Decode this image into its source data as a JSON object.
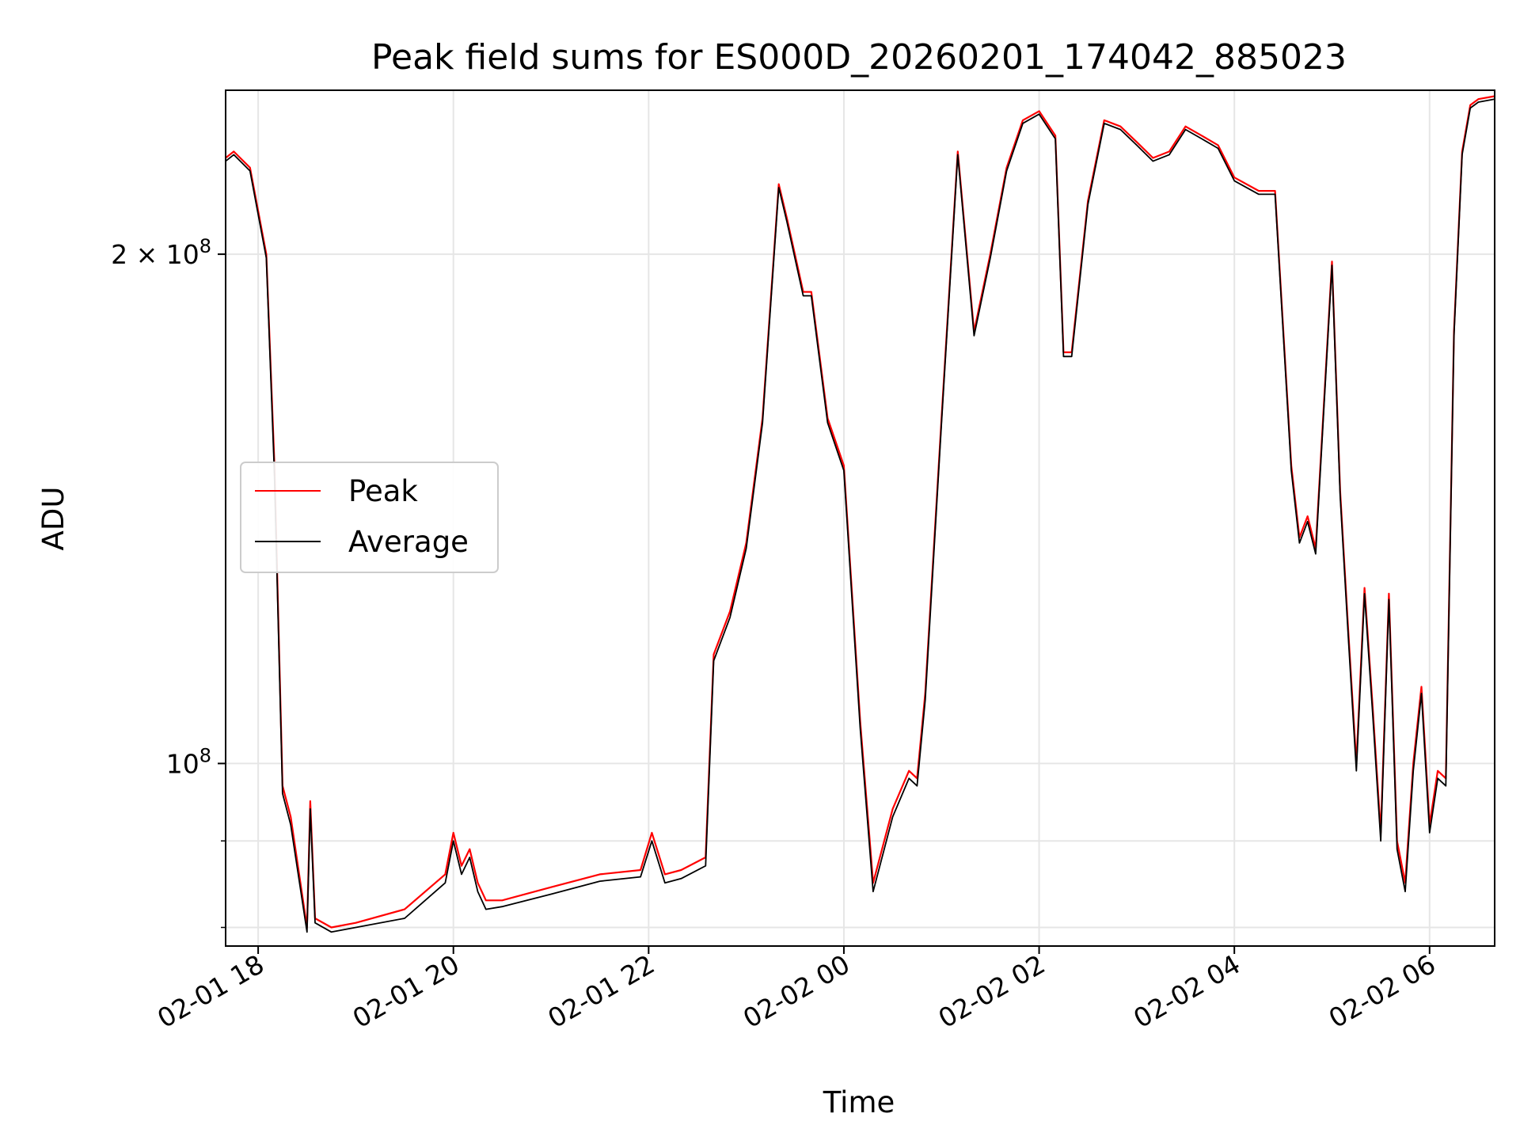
{
  "chart_data": {
    "type": "line",
    "title": "Peak field sums for ES000D_20260201_174042_885023",
    "xlabel": "Time",
    "ylabel": "ADU",
    "yscale": "log",
    "xlim": [
      "2026-02-01 17:40",
      "2026-02-02 06:40"
    ],
    "ylim": [
      78000000,
      250000000
    ],
    "x_ticks": [
      {
        "t": "2026-02-01 18:00",
        "label": "02-01 18"
      },
      {
        "t": "2026-02-01 20:00",
        "label": "02-01 20"
      },
      {
        "t": "2026-02-01 22:00",
        "label": "02-01 22"
      },
      {
        "t": "2026-02-02 00:00",
        "label": "02-02 00"
      },
      {
        "t": "2026-02-02 02:00",
        "label": "02-02 02"
      },
      {
        "t": "2026-02-02 04:00",
        "label": "02-02 04"
      },
      {
        "t": "2026-02-02 06:00",
        "label": "02-02 06"
      }
    ],
    "y_major_ticks": [
      {
        "value": 100000000,
        "base": "10",
        "exp": "8",
        "prefix": ""
      },
      {
        "value": 200000000,
        "base": "10",
        "exp": "8",
        "prefix": "2 × "
      }
    ],
    "y_minor_ticks": [
      80000000,
      90000000
    ],
    "grid": true,
    "legend": {
      "position": "center-left"
    },
    "series": [
      {
        "name": "Peak",
        "color": "#ff0000",
        "x": [
          "2026-02-01 17:40",
          "2026-02-01 17:45",
          "2026-02-01 17:55",
          "2026-02-01 18:05",
          "2026-02-01 18:10",
          "2026-02-01 18:15",
          "2026-02-01 18:20",
          "2026-02-01 18:30",
          "2026-02-01 18:32",
          "2026-02-01 18:35",
          "2026-02-01 18:45",
          "2026-02-01 19:00",
          "2026-02-01 19:30",
          "2026-02-01 19:55",
          "2026-02-01 20:00",
          "2026-02-01 20:05",
          "2026-02-01 20:10",
          "2026-02-01 20:15",
          "2026-02-01 20:20",
          "2026-02-01 20:30",
          "2026-02-01 21:00",
          "2026-02-01 21:30",
          "2026-02-01 21:55",
          "2026-02-01 22:02",
          "2026-02-01 22:10",
          "2026-02-01 22:20",
          "2026-02-01 22:35",
          "2026-02-01 22:40",
          "2026-02-01 22:50",
          "2026-02-01 23:00",
          "2026-02-01 23:10",
          "2026-02-01 23:20",
          "2026-02-01 23:25",
          "2026-02-01 23:35",
          "2026-02-01 23:40",
          "2026-02-01 23:50",
          "2026-02-02 00:00",
          "2026-02-02 00:10",
          "2026-02-02 00:18",
          "2026-02-02 00:30",
          "2026-02-02 00:40",
          "2026-02-02 00:45",
          "2026-02-02 00:50",
          "2026-02-02 01:00",
          "2026-02-02 01:10",
          "2026-02-02 01:20",
          "2026-02-02 01:30",
          "2026-02-02 01:40",
          "2026-02-02 01:50",
          "2026-02-02 02:00",
          "2026-02-02 02:10",
          "2026-02-02 02:15",
          "2026-02-02 02:20",
          "2026-02-02 02:30",
          "2026-02-02 02:40",
          "2026-02-02 02:50",
          "2026-02-02 03:00",
          "2026-02-02 03:10",
          "2026-02-02 03:20",
          "2026-02-02 03:30",
          "2026-02-02 03:40",
          "2026-02-02 03:50",
          "2026-02-02 04:00",
          "2026-02-02 04:15",
          "2026-02-02 04:25",
          "2026-02-02 04:35",
          "2026-02-02 04:40",
          "2026-02-02 04:45",
          "2026-02-02 04:50",
          "2026-02-02 05:00",
          "2026-02-02 05:05",
          "2026-02-02 05:10",
          "2026-02-02 05:15",
          "2026-02-02 05:20",
          "2026-02-02 05:25",
          "2026-02-02 05:30",
          "2026-02-02 05:35",
          "2026-02-02 05:40",
          "2026-02-02 05:45",
          "2026-02-02 05:50",
          "2026-02-02 05:55",
          "2026-02-02 06:00",
          "2026-02-02 06:05",
          "2026-02-02 06:10",
          "2026-02-02 06:15",
          "2026-02-02 06:20",
          "2026-02-02 06:25",
          "2026-02-02 06:30",
          "2026-02-02 06:40"
        ],
        "y": [
          228000000,
          230000000,
          225000000,
          200000000,
          150000000,
          97000000,
          93000000,
          80000000,
          95000000,
          81000000,
          80000000,
          80500000,
          82000000,
          86000000,
          91000000,
          87000000,
          89000000,
          85000000,
          83000000,
          83000000,
          84500000,
          86000000,
          86500000,
          91000000,
          86000000,
          86500000,
          88000000,
          116000000,
          123000000,
          135000000,
          160000000,
          220000000,
          210000000,
          190000000,
          190000000,
          160000000,
          150000000,
          106000000,
          85000000,
          94000000,
          99000000,
          98000000,
          110000000,
          160000000,
          230000000,
          180000000,
          200000000,
          225000000,
          240000000,
          243000000,
          235000000,
          175000000,
          175000000,
          215000000,
          240000000,
          238000000,
          233000000,
          228000000,
          230000000,
          238000000,
          235000000,
          232000000,
          222000000,
          218000000,
          218000000,
          150000000,
          136000000,
          140000000,
          134000000,
          198000000,
          145000000,
          120000000,
          100000000,
          127000000,
          108000000,
          91000000,
          126000000,
          90000000,
          85000000,
          100000000,
          111000000,
          92000000,
          99000000,
          98000000,
          180000000,
          230000000,
          245000000,
          247000000,
          248000000
        ]
      },
      {
        "name": "Average",
        "color": "#000000",
        "x": [
          "2026-02-01 17:40",
          "2026-02-01 17:45",
          "2026-02-01 17:55",
          "2026-02-01 18:05",
          "2026-02-01 18:10",
          "2026-02-01 18:15",
          "2026-02-01 18:20",
          "2026-02-01 18:30",
          "2026-02-01 18:32",
          "2026-02-01 18:35",
          "2026-02-01 18:45",
          "2026-02-01 19:00",
          "2026-02-01 19:30",
          "2026-02-01 19:55",
          "2026-02-01 20:00",
          "2026-02-01 20:05",
          "2026-02-01 20:10",
          "2026-02-01 20:15",
          "2026-02-01 20:20",
          "2026-02-01 20:30",
          "2026-02-01 21:00",
          "2026-02-01 21:30",
          "2026-02-01 21:55",
          "2026-02-01 22:02",
          "2026-02-01 22:10",
          "2026-02-01 22:20",
          "2026-02-01 22:35",
          "2026-02-01 22:40",
          "2026-02-01 22:50",
          "2026-02-01 23:00",
          "2026-02-01 23:10",
          "2026-02-01 23:20",
          "2026-02-01 23:25",
          "2026-02-01 23:35",
          "2026-02-01 23:40",
          "2026-02-01 23:50",
          "2026-02-02 00:00",
          "2026-02-02 00:10",
          "2026-02-02 00:18",
          "2026-02-02 00:30",
          "2026-02-02 00:40",
          "2026-02-02 00:45",
          "2026-02-02 00:50",
          "2026-02-02 01:00",
          "2026-02-02 01:10",
          "2026-02-02 01:20",
          "2026-02-02 01:30",
          "2026-02-02 01:40",
          "2026-02-02 01:50",
          "2026-02-02 02:00",
          "2026-02-02 02:10",
          "2026-02-02 02:15",
          "2026-02-02 02:20",
          "2026-02-02 02:30",
          "2026-02-02 02:40",
          "2026-02-02 02:50",
          "2026-02-02 03:00",
          "2026-02-02 03:10",
          "2026-02-02 03:20",
          "2026-02-02 03:30",
          "2026-02-02 03:40",
          "2026-02-02 03:50",
          "2026-02-02 04:00",
          "2026-02-02 04:15",
          "2026-02-02 04:25",
          "2026-02-02 04:35",
          "2026-02-02 04:40",
          "2026-02-02 04:45",
          "2026-02-02 04:50",
          "2026-02-02 05:00",
          "2026-02-02 05:05",
          "2026-02-02 05:10",
          "2026-02-02 05:15",
          "2026-02-02 05:20",
          "2026-02-02 05:25",
          "2026-02-02 05:30",
          "2026-02-02 05:35",
          "2026-02-02 05:40",
          "2026-02-02 05:45",
          "2026-02-02 05:50",
          "2026-02-02 05:55",
          "2026-02-02 06:00",
          "2026-02-02 06:05",
          "2026-02-02 06:10",
          "2026-02-02 06:15",
          "2026-02-02 06:20",
          "2026-02-02 06:25",
          "2026-02-02 06:30",
          "2026-02-02 06:40"
        ],
        "y": [
          227000000,
          229000000,
          224000000,
          199000000,
          148000000,
          96000000,
          92000000,
          79500000,
          94000000,
          80500000,
          79500000,
          80000000,
          81000000,
          85000000,
          90000000,
          86000000,
          88000000,
          84000000,
          82000000,
          82300000,
          83700000,
          85200000,
          85700000,
          90000000,
          85000000,
          85500000,
          87000000,
          115000000,
          122000000,
          134000000,
          159000000,
          219000000,
          209000000,
          189000000,
          189000000,
          159000000,
          149000000,
          105000000,
          84000000,
          93000000,
          98000000,
          97000000,
          109000000,
          159000000,
          229000000,
          179000000,
          199000000,
          224000000,
          239000000,
          242000000,
          234000000,
          174000000,
          174000000,
          214000000,
          239000000,
          237000000,
          232000000,
          227000000,
          229000000,
          237000000,
          234000000,
          231000000,
          221000000,
          217000000,
          217000000,
          149000000,
          135000000,
          139000000,
          133000000,
          197000000,
          144000000,
          119000000,
          99000000,
          126000000,
          107000000,
          90000000,
          125000000,
          89000000,
          84000000,
          99000000,
          110000000,
          91000000,
          98000000,
          97000000,
          179000000,
          229000000,
          244000000,
          246000000,
          247000000
        ]
      }
    ]
  }
}
